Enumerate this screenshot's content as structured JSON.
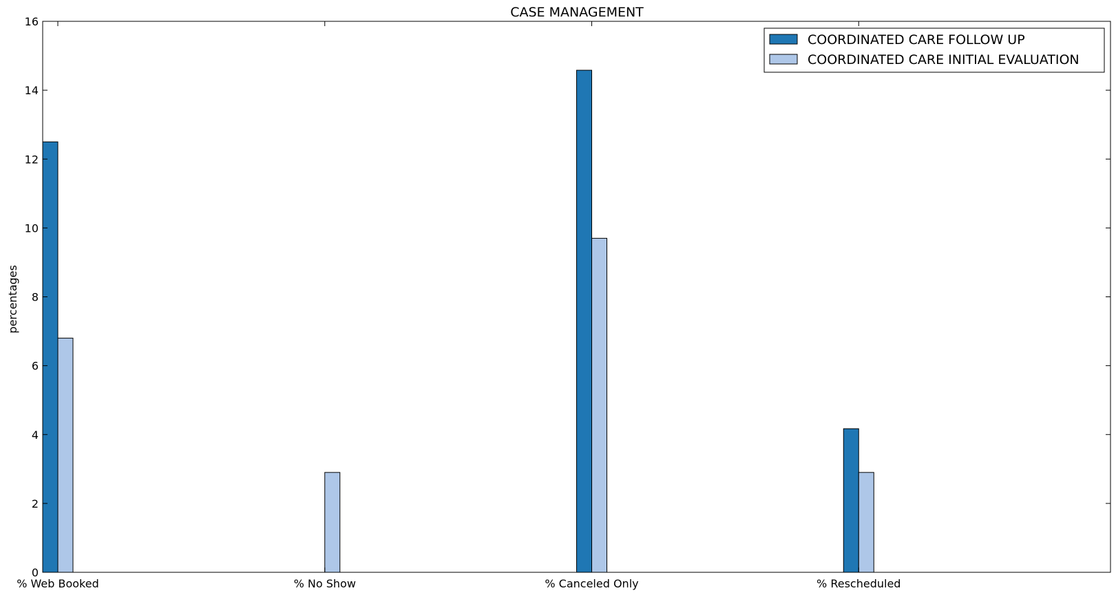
{
  "chart_data": {
    "type": "bar",
    "title": "CASE MANAGEMENT",
    "xlabel": "",
    "ylabel": "percentages",
    "ylim": [
      0,
      16
    ],
    "yticks": [
      0,
      2,
      4,
      6,
      8,
      10,
      12,
      14,
      16
    ],
    "categories": [
      "% Web Booked",
      "% No Show",
      "% Canceled Only",
      "% Rescheduled"
    ],
    "series": [
      {
        "name": "COORDINATED CARE FOLLOW UP",
        "color": "#1f77b4",
        "values": [
          12.5,
          0,
          14.58,
          4.17
        ]
      },
      {
        "name": "COORDINATED CARE INITIAL EVALUATION",
        "color": "#aec7e8",
        "values": [
          6.8,
          2.9,
          9.7,
          2.9
        ]
      }
    ],
    "grid": false,
    "legend_position": "top-right"
  }
}
